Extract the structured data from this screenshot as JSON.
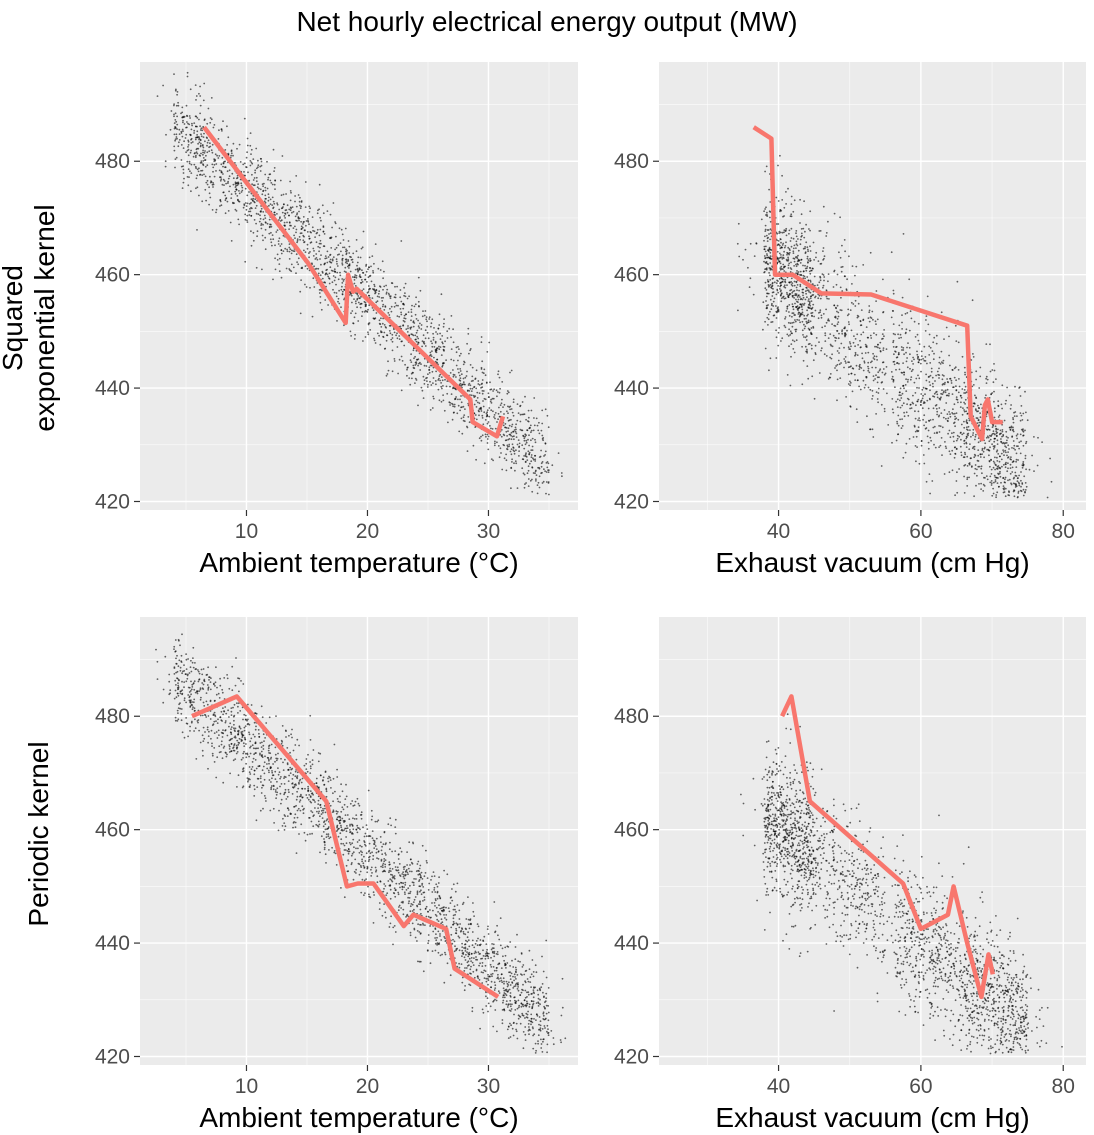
{
  "figure_title": "Net hourly electrical energy output (MW)",
  "row_labels": [
    [
      "Squared",
      "exponential kernel"
    ],
    [
      "Periodic kernel"
    ]
  ],
  "colors": {
    "panel_background": "#ebebeb",
    "grid_major": "#ffffff",
    "points": "#000000",
    "fit_line": "#f8766d",
    "tick_text": "#4d4d4d"
  },
  "chart_data": [
    {
      "type": "scatter",
      "row": "Squared exponential kernel",
      "xlabel": "Ambient temperature (°C)",
      "ylabel": "",
      "xlim": [
        1.2,
        37.4
      ],
      "ylim": [
        418.5,
        497.5
      ],
      "xticks": [
        10,
        20,
        30
      ],
      "yticks": [
        420,
        440,
        460,
        480
      ],
      "grid": true,
      "scatter_cloud": {
        "x_range": [
          1.8,
          37.1
        ],
        "y_range": [
          420.3,
          495.8
        ],
        "relationship": "decreasing, roughly linear"
      },
      "line": {
        "x": [
          6.5,
          15.1,
          18.2,
          18.4,
          18.8,
          19.1,
          28.5,
          28.7,
          30.7,
          31.2
        ],
        "y": [
          486,
          462,
          451.5,
          460,
          457,
          457.5,
          438,
          434,
          431.5,
          435
        ]
      }
    },
    {
      "type": "scatter",
      "row": "Squared exponential kernel",
      "xlabel": "Exhaust vacuum (cm Hg)",
      "ylabel": "",
      "xlim": [
        23.2,
        83.2
      ],
      "ylim": [
        418.5,
        497.5
      ],
      "xticks": [
        40,
        60,
        80
      ],
      "yticks": [
        420,
        440,
        460,
        480
      ],
      "grid": true,
      "scatter_cloud": {
        "x_range": [
          25.4,
          81.6
        ],
        "y_range": [
          420.3,
          495.8
        ],
        "relationship": "decreasing"
      },
      "line": {
        "x": [
          36.5,
          39,
          39.5,
          42,
          46,
          53,
          66.5,
          67,
          68.6,
          69,
          69.4,
          70,
          71.5
        ],
        "y": [
          486,
          484,
          460,
          460,
          456.7,
          456.5,
          451,
          435,
          431,
          437,
          438,
          434,
          434
        ]
      }
    },
    {
      "type": "scatter",
      "row": "Periodic kernel",
      "xlabel": "Ambient temperature (°C)",
      "ylabel": "",
      "xlim": [
        1.2,
        37.4
      ],
      "ylim": [
        418.5,
        497.5
      ],
      "xticks": [
        10,
        20,
        30
      ],
      "yticks": [
        420,
        440,
        460,
        480
      ],
      "grid": true,
      "scatter_cloud": {
        "x_range": [
          1.8,
          37.1
        ],
        "y_range": [
          420.3,
          495.8
        ],
        "relationship": "decreasing, roughly linear"
      },
      "line": {
        "x": [
          5.5,
          9.2,
          16.6,
          18.3,
          19.2,
          20.5,
          23,
          23.8,
          26.5,
          27.2,
          30.8
        ],
        "y": [
          480,
          483.5,
          465,
          450,
          450.5,
          450.5,
          443,
          445,
          442.5,
          435.5,
          430.5
        ]
      }
    },
    {
      "type": "scatter",
      "row": "Periodic kernel",
      "xlabel": "Exhaust vacuum (cm Hg)",
      "ylabel": "",
      "xlim": [
        23.2,
        83.2
      ],
      "ylim": [
        418.5,
        497.5
      ],
      "xticks": [
        40,
        60,
        80
      ],
      "yticks": [
        420,
        440,
        460,
        480
      ],
      "grid": true,
      "scatter_cloud": {
        "x_range": [
          25.4,
          81.6
        ],
        "y_range": [
          420.3,
          495.8
        ],
        "relationship": "decreasing"
      },
      "line": {
        "x": [
          40.5,
          41.8,
          44.4,
          57.5,
          60,
          63.8,
          64.6,
          66.5,
          68.5,
          69.5,
          70.1
        ],
        "y": [
          480,
          483.5,
          465,
          450.5,
          442.5,
          445,
          450,
          440,
          430.5,
          438,
          434.5
        ]
      }
    }
  ]
}
